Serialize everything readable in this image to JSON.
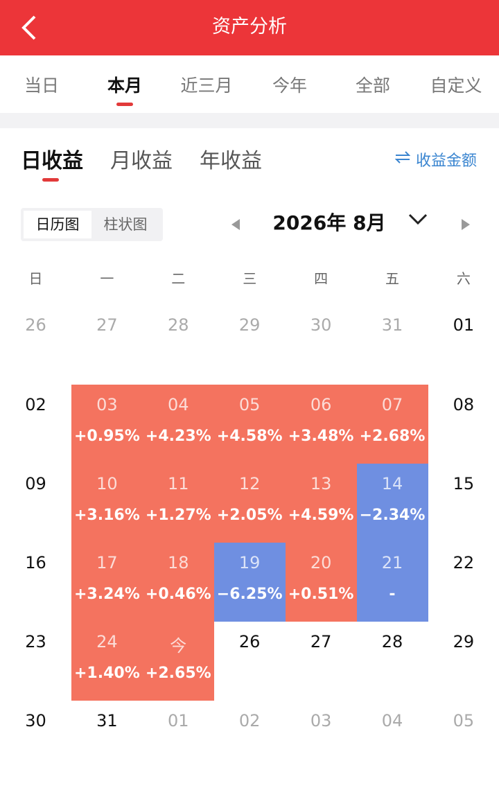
{
  "header": {
    "title": "资产分析"
  },
  "period_tabs": {
    "items": [
      "当日",
      "本月",
      "近三月",
      "今年",
      "全部",
      "自定义"
    ],
    "active": 1
  },
  "income_tabs": {
    "items": [
      "日收益",
      "月收益",
      "年收益"
    ],
    "active": 0
  },
  "amount_toggle": "收益金额",
  "view_toggle": {
    "items": [
      "日历图",
      "柱状图"
    ],
    "active": 0
  },
  "month": "2026年 8月",
  "weekdays": [
    "日",
    "一",
    "二",
    "三",
    "四",
    "五",
    "六"
  ],
  "weeks": [
    [
      {
        "day": "26",
        "state": "muted"
      },
      {
        "day": "27",
        "state": "muted"
      },
      {
        "day": "28",
        "state": "muted"
      },
      {
        "day": "29",
        "state": "muted"
      },
      {
        "day": "30",
        "state": "muted"
      },
      {
        "day": "31",
        "state": "muted"
      },
      {
        "day": "01",
        "state": "normal"
      }
    ],
    [
      {
        "day": "02",
        "state": "normal"
      },
      {
        "day": "03",
        "state": "up",
        "change": "+0.95%"
      },
      {
        "day": "04",
        "state": "up",
        "change": "+4.23%"
      },
      {
        "day": "05",
        "state": "up",
        "change": "+4.58%"
      },
      {
        "day": "06",
        "state": "up",
        "change": "+3.48%"
      },
      {
        "day": "07",
        "state": "up",
        "change": "+2.68%"
      },
      {
        "day": "08",
        "state": "normal"
      }
    ],
    [
      {
        "day": "09",
        "state": "normal"
      },
      {
        "day": "10",
        "state": "up",
        "change": "+3.16%"
      },
      {
        "day": "11",
        "state": "up",
        "change": "+1.27%"
      },
      {
        "day": "12",
        "state": "up",
        "change": "+2.05%"
      },
      {
        "day": "13",
        "state": "up",
        "change": "+4.59%"
      },
      {
        "day": "14",
        "state": "down",
        "change": "−2.34%"
      },
      {
        "day": "15",
        "state": "normal"
      }
    ],
    [
      {
        "day": "16",
        "state": "normal"
      },
      {
        "day": "17",
        "state": "up",
        "change": "+3.24%"
      },
      {
        "day": "18",
        "state": "up",
        "change": "+0.46%"
      },
      {
        "day": "19",
        "state": "down",
        "change": "−6.25%"
      },
      {
        "day": "20",
        "state": "up",
        "change": "+0.51%"
      },
      {
        "day": "21",
        "state": "down",
        "change": "-"
      },
      {
        "day": "22",
        "state": "normal"
      }
    ],
    [
      {
        "day": "23",
        "state": "normal"
      },
      {
        "day": "24",
        "state": "up",
        "change": "+1.40%"
      },
      {
        "day": "今",
        "state": "up",
        "change": "+2.65%"
      },
      {
        "day": "26",
        "state": "normal"
      },
      {
        "day": "27",
        "state": "normal"
      },
      {
        "day": "28",
        "state": "normal"
      },
      {
        "day": "29",
        "state": "normal"
      }
    ],
    [
      {
        "day": "30",
        "state": "normal"
      },
      {
        "day": "31",
        "state": "normal"
      },
      {
        "day": "01",
        "state": "muted"
      },
      {
        "day": "02",
        "state": "muted"
      },
      {
        "day": "03",
        "state": "muted"
      },
      {
        "day": "04",
        "state": "muted"
      },
      {
        "day": "05",
        "state": "muted"
      }
    ]
  ]
}
